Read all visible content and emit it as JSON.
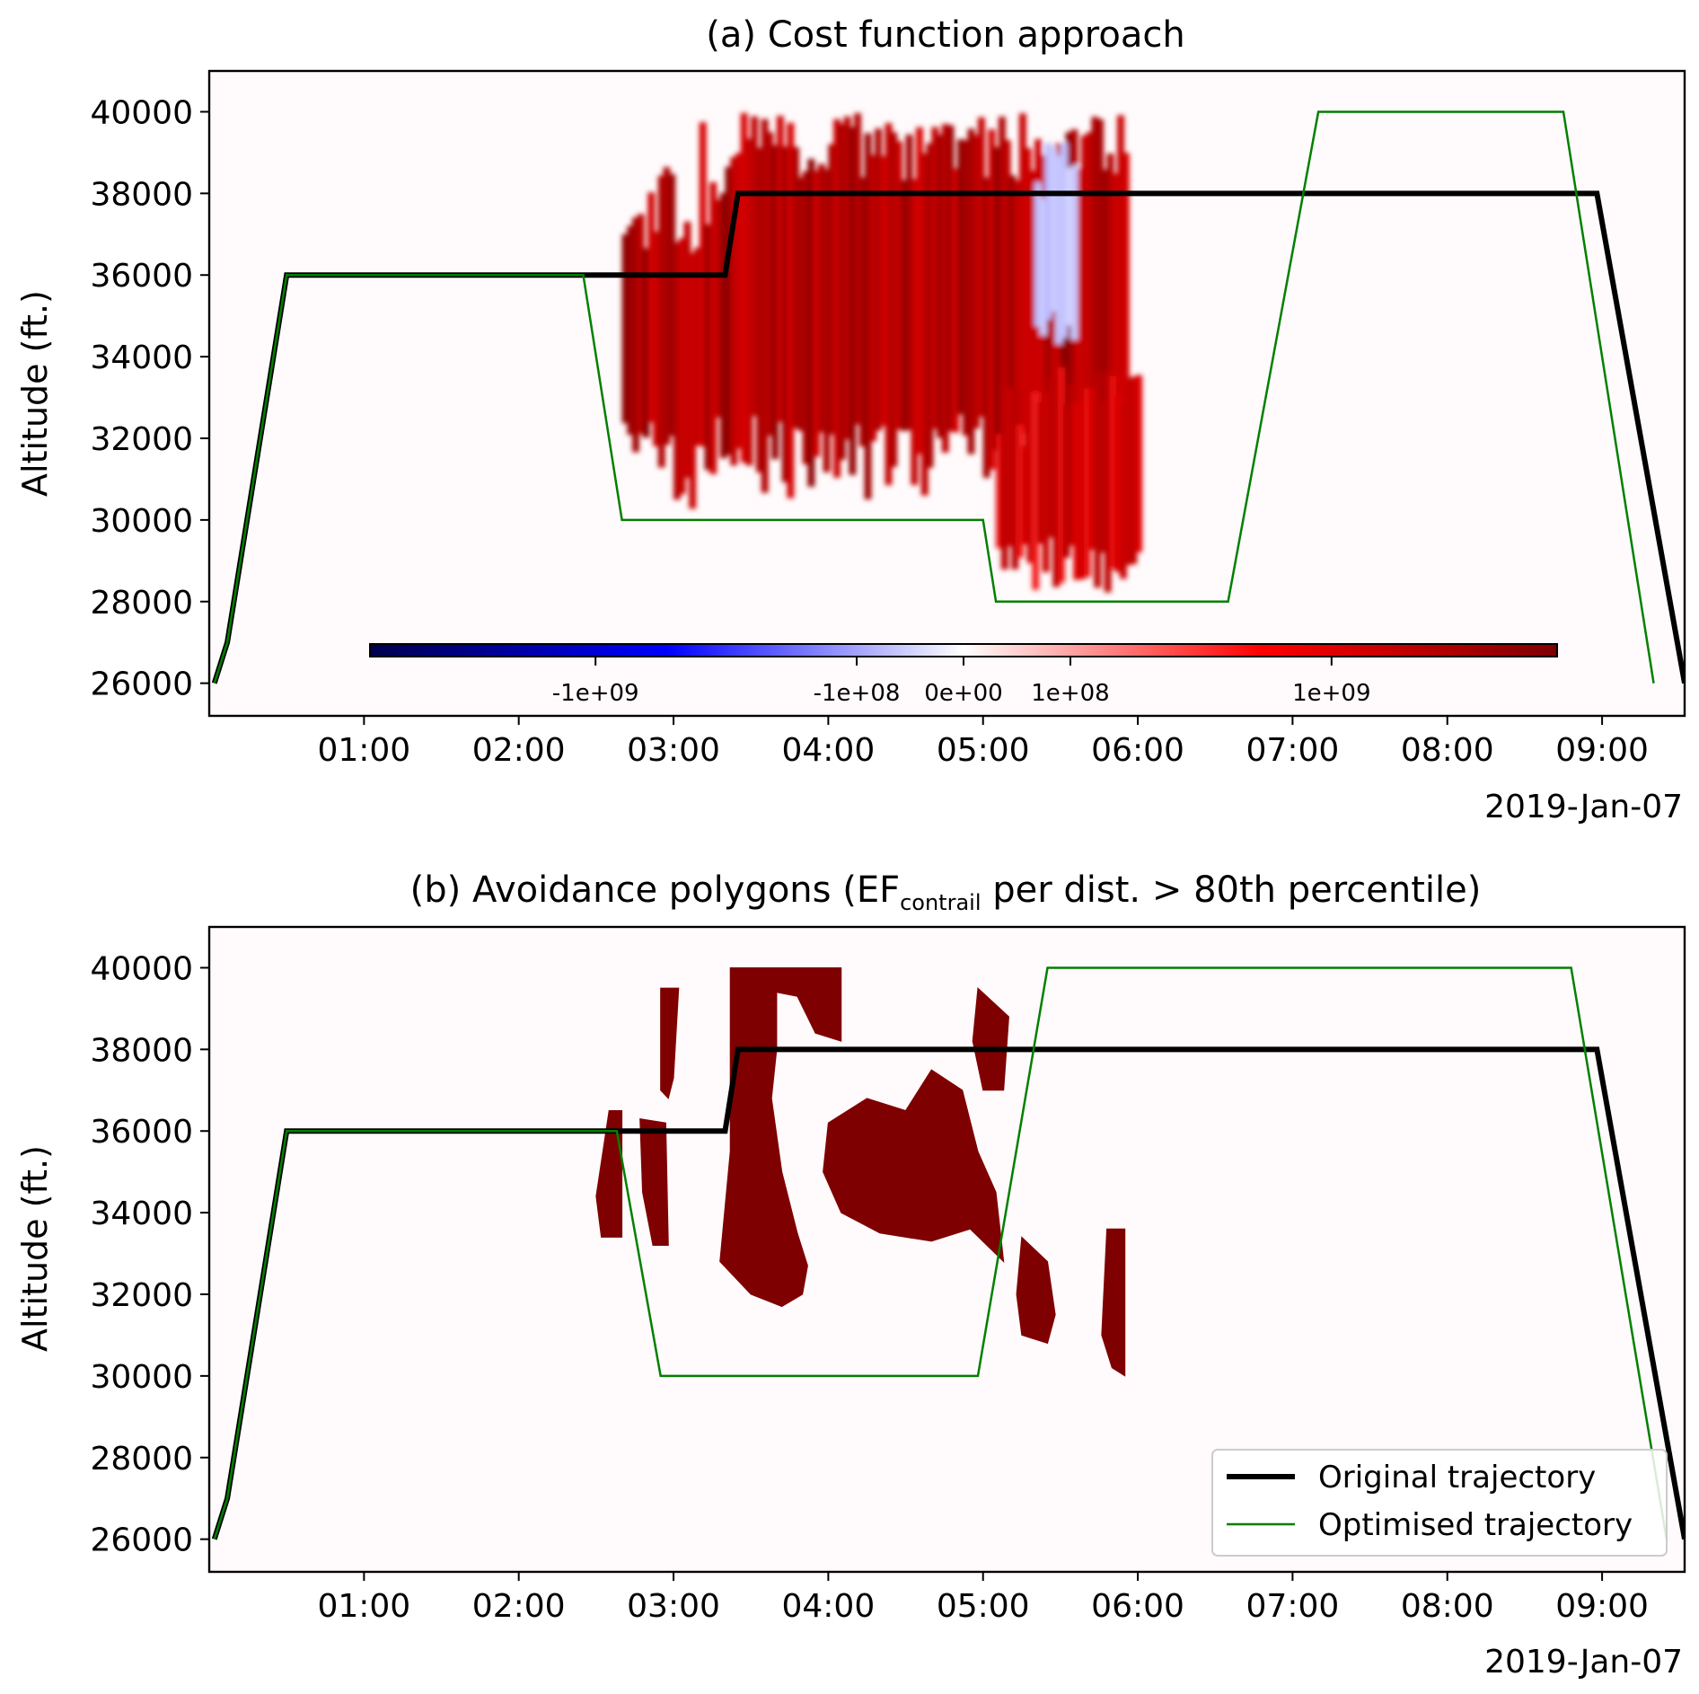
{
  "chart_data": [
    {
      "type": "heatmap",
      "title": "(a) Cost function approach",
      "ylabel": "Altitude (ft.)",
      "xlabel": "",
      "date_label": "2019-Jan-07",
      "xlim": [
        "00:00",
        "09:32"
      ],
      "ylim": [
        25200,
        41000
      ],
      "y_ticks": [
        "26000",
        "28000",
        "30000",
        "32000",
        "34000",
        "36000",
        "38000",
        "40000"
      ],
      "x_ticks": [
        "01:00",
        "02:00",
        "03:00",
        "04:00",
        "05:00",
        "06:00",
        "07:00",
        "08:00",
        "09:00"
      ],
      "grid": false,
      "colorbar": {
        "colormap": "seismic",
        "scale": "symlog",
        "ticks": [
          "-1e+09",
          "-1e+08",
          "0e+00",
          "1e+08",
          "1e+09"
        ]
      },
      "heatmap_regions": [
        {
          "sign": "positive",
          "intensity": "high",
          "time_start": "02:40",
          "time_end": "05:55",
          "alt_min": 30200,
          "alt_max": 40000
        },
        {
          "sign": "positive",
          "intensity": "medium",
          "time_start": "05:05",
          "time_end": "06:00",
          "alt_min": 28200,
          "alt_max": 33800
        },
        {
          "sign": "negative",
          "intensity": "low",
          "time_start": "05:20",
          "time_end": "05:35",
          "alt_min": 34000,
          "alt_max": 39500
        }
      ],
      "series": [
        {
          "name": "Original trajectory",
          "color": "#000000",
          "points": [
            [
              "00:02",
              26000
            ],
            [
              "00:07",
              27000
            ],
            [
              "00:30",
              36000
            ],
            [
              "03:20",
              36000
            ],
            [
              "03:25",
              38000
            ],
            [
              "08:58",
              38000
            ],
            [
              "09:32",
              26000
            ]
          ]
        },
        {
          "name": "Optimised trajectory",
          "color": "#008000",
          "points": [
            [
              "00:02",
              26000
            ],
            [
              "00:07",
              27000
            ],
            [
              "00:30",
              36000
            ],
            [
              "02:25",
              36000
            ],
            [
              "02:40",
              30000
            ],
            [
              "05:00",
              30000
            ],
            [
              "05:05",
              28000
            ],
            [
              "06:35",
              28000
            ],
            [
              "07:10",
              40000
            ],
            [
              "08:45",
              40000
            ],
            [
              "09:20",
              26000
            ]
          ]
        }
      ]
    },
    {
      "type": "heatmap",
      "title_prefix": "(b) Avoidance polygons (EF",
      "title_subscript": "contrail",
      "title_suffix": " per dist. > 80th percentile)",
      "ylabel": "Altitude (ft.)",
      "xlabel": "",
      "date_label": "2019-Jan-07",
      "xlim": [
        "00:00",
        "09:32"
      ],
      "ylim": [
        25200,
        41000
      ],
      "y_ticks": [
        "26000",
        "28000",
        "30000",
        "32000",
        "34000",
        "36000",
        "38000",
        "40000"
      ],
      "x_ticks": [
        "01:00",
        "02:00",
        "03:00",
        "04:00",
        "05:00",
        "06:00",
        "07:00",
        "08:00",
        "09:00"
      ],
      "grid": false,
      "legend_placement": "lower-right",
      "legend": [
        "Original trajectory",
        "Optimised trajectory"
      ],
      "polygon_color": "#7f0000",
      "polygons": [
        [
          [
            "03:22",
            40000
          ],
          [
            "04:05",
            40000
          ],
          [
            "04:05",
            38200
          ],
          [
            "03:55",
            38400
          ],
          [
            "03:48",
            39300
          ],
          [
            "03:40",
            39400
          ],
          [
            "03:40",
            38000
          ],
          [
            "03:38",
            36800
          ],
          [
            "03:42",
            35000
          ],
          [
            "03:48",
            33500
          ],
          [
            "03:52",
            32700
          ],
          [
            "03:50",
            32000
          ],
          [
            "03:42",
            31700
          ],
          [
            "03:30",
            32000
          ],
          [
            "03:18",
            32800
          ],
          [
            "03:22",
            35500
          ]
        ],
        [
          [
            "04:00",
            36200
          ],
          [
            "04:15",
            36800
          ],
          [
            "04:30",
            36500
          ],
          [
            "04:40",
            37500
          ],
          [
            "04:52",
            37000
          ],
          [
            "04:58",
            35500
          ],
          [
            "05:05",
            34500
          ],
          [
            "05:08",
            32800
          ],
          [
            "04:55",
            33600
          ],
          [
            "04:40",
            33300
          ],
          [
            "04:20",
            33500
          ],
          [
            "04:05",
            34000
          ],
          [
            "03:58",
            35000
          ]
        ],
        [
          [
            "02:55",
            39500
          ],
          [
            "03:02",
            39500
          ],
          [
            "03:00",
            37300
          ],
          [
            "02:58",
            36800
          ],
          [
            "02:55",
            37000
          ]
        ],
        [
          [
            "02:47",
            36300
          ],
          [
            "02:57",
            36200
          ],
          [
            "02:58",
            33200
          ],
          [
            "02:52",
            33200
          ],
          [
            "02:48",
            34500
          ]
        ],
        [
          [
            "02:35",
            36500
          ],
          [
            "02:40",
            36500
          ],
          [
            "02:40",
            33400
          ],
          [
            "02:32",
            33400
          ],
          [
            "02:30",
            34400
          ]
        ],
        [
          [
            "04:58",
            39500
          ],
          [
            "05:10",
            38800
          ],
          [
            "05:08",
            37000
          ],
          [
            "05:00",
            37000
          ],
          [
            "04:56",
            38200
          ]
        ],
        [
          [
            "05:15",
            33400
          ],
          [
            "05:25",
            32800
          ],
          [
            "05:28",
            31500
          ],
          [
            "05:25",
            30800
          ],
          [
            "05:15",
            31000
          ],
          [
            "05:13",
            32000
          ]
        ],
        [
          [
            "05:48",
            33600
          ],
          [
            "05:55",
            33600
          ],
          [
            "05:55",
            30000
          ],
          [
            "05:50",
            30200
          ],
          [
            "05:46",
            31000
          ]
        ]
      ],
      "series": [
        {
          "name": "Original trajectory",
          "color": "#000000",
          "points": [
            [
              "00:02",
              26000
            ],
            [
              "00:07",
              27000
            ],
            [
              "00:30",
              36000
            ],
            [
              "03:20",
              36000
            ],
            [
              "03:25",
              38000
            ],
            [
              "08:58",
              38000
            ],
            [
              "09:32",
              26000
            ]
          ]
        },
        {
          "name": "Optimised trajectory",
          "color": "#008000",
          "points": [
            [
              "00:02",
              26000
            ],
            [
              "00:07",
              27000
            ],
            [
              "00:30",
              36000
            ],
            [
              "02:38",
              36000
            ],
            [
              "02:55",
              30000
            ],
            [
              "04:58",
              30000
            ],
            [
              "05:25",
              40000
            ],
            [
              "08:48",
              40000
            ],
            [
              "09:25",
              26000
            ]
          ]
        }
      ]
    }
  ]
}
